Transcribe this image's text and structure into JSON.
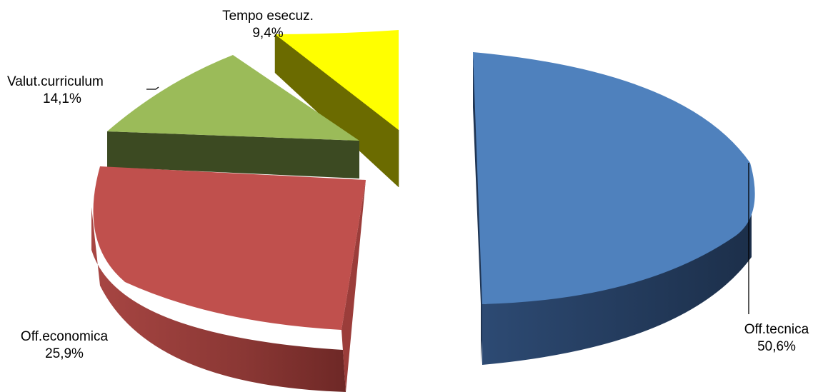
{
  "chart_data": {
    "type": "pie",
    "style": "3d-exploded",
    "slices": [
      {
        "label": "Off.tecnica",
        "percent_label": "50,6%",
        "value": 50.6,
        "top_color": "#4F81BD",
        "side_color": "#23395A"
      },
      {
        "label": "Off.economica",
        "percent_label": "25,9%",
        "value": 25.9,
        "top_color": "#C0504D",
        "side_color": "#7E2E2C"
      },
      {
        "label": "Valut.curriculum",
        "percent_label": "14,1%",
        "value": 14.1,
        "top_color": "#9BBB59",
        "side_color": "#3C4A22"
      },
      {
        "label": "Tempo esecuz.",
        "percent_label": "9,4%",
        "value": 9.4,
        "top_color": "#FFFF00",
        "side_color": "#6B6B00"
      }
    ]
  }
}
